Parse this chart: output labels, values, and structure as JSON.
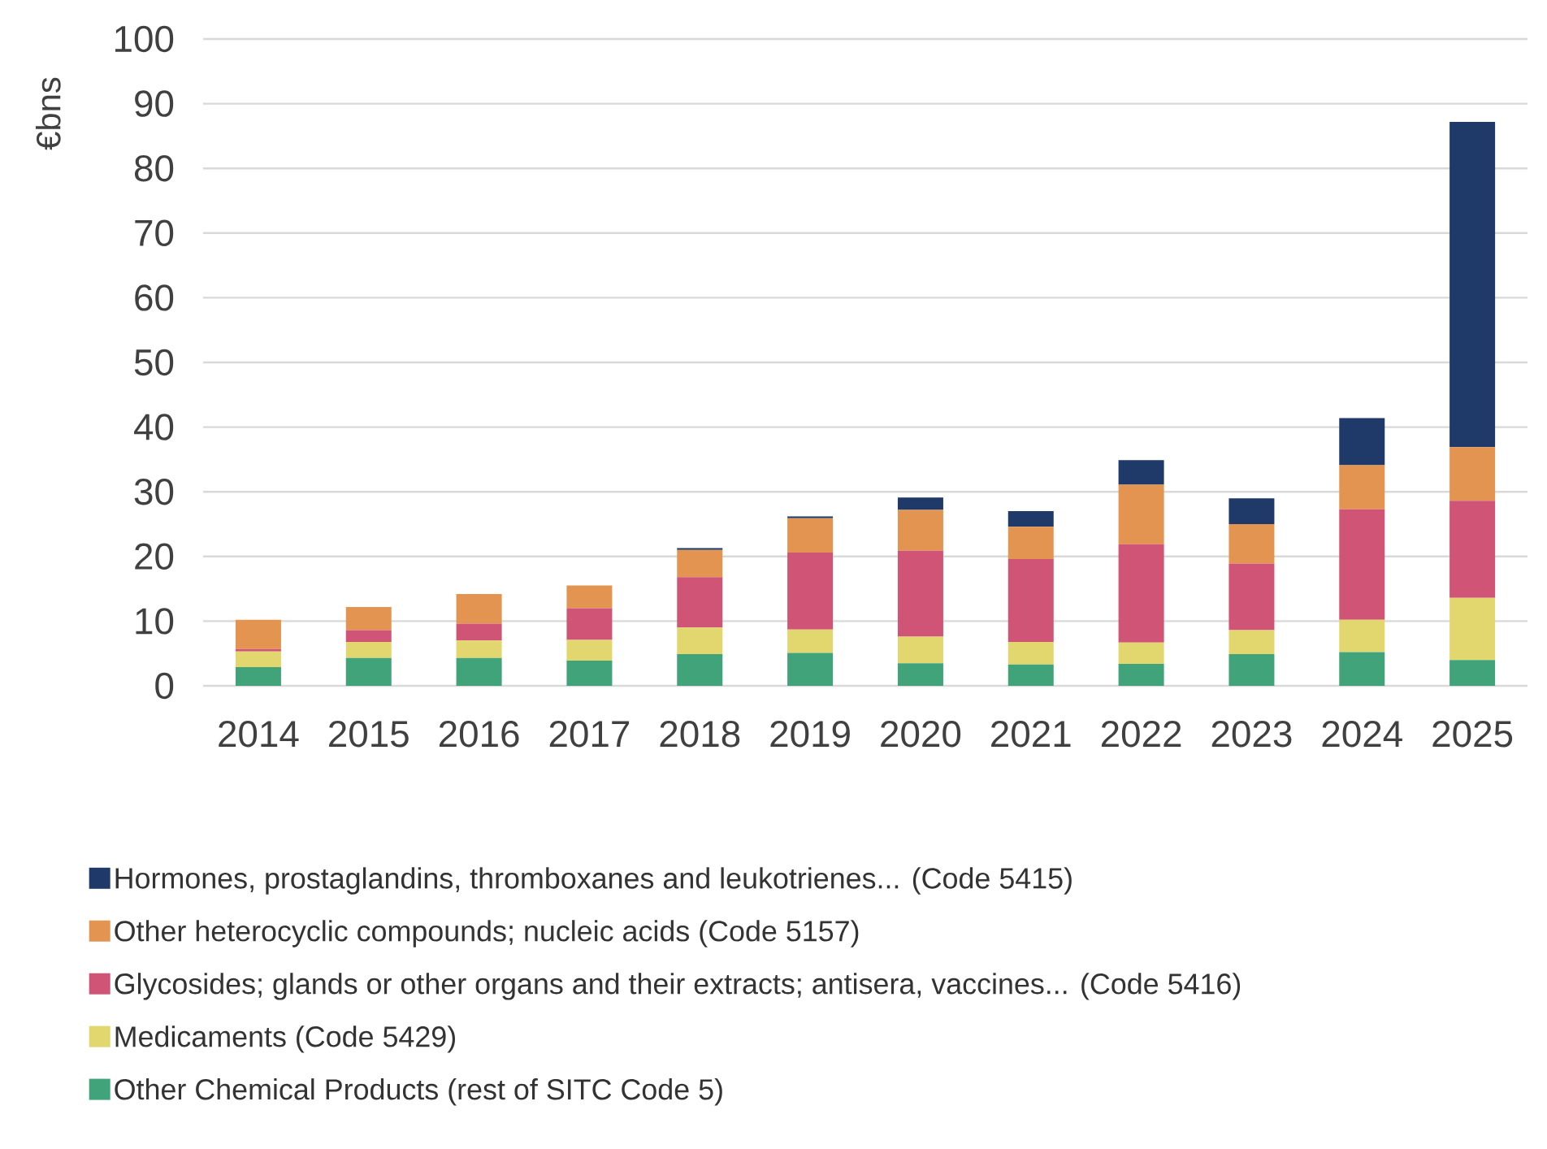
{
  "chart_data": {
    "type": "bar",
    "stacked": true,
    "ylabel": "€bns",
    "categories": [
      "2014",
      "2015",
      "2016",
      "2017",
      "2018",
      "2019",
      "2020",
      "2021",
      "2022",
      "2023",
      "2024",
      "2025"
    ],
    "ylim": [
      0,
      100
    ],
    "yticks": [
      0,
      10,
      20,
      30,
      40,
      50,
      60,
      70,
      80,
      90,
      100
    ],
    "grid": "y",
    "legend": "bottom",
    "series": [
      {
        "name": "Other Chemical Products (rest of SITC Code 5)",
        "color": "#41a37a",
        "values": [
          2.9,
          4.3,
          4.3,
          3.9,
          4.9,
          5.1,
          3.5,
          3.3,
          3.4,
          4.9,
          5.2,
          4.0
        ]
      },
      {
        "name": "Medicaments (Code 5429)",
        "color": "#e2d66e",
        "values": [
          2.4,
          2.5,
          2.7,
          3.2,
          4.1,
          3.6,
          4.1,
          3.5,
          3.3,
          3.7,
          5.0,
          9.6
        ]
      },
      {
        "name": "Glycosides; glands or other organs and their extracts; antisera, vaccines... (Code 5416)",
        "color": "#d05475",
        "values": [
          0.4,
          1.8,
          2.6,
          4.9,
          7.8,
          11.9,
          13.3,
          12.8,
          15.2,
          10.3,
          17.1,
          15.0
        ]
      },
      {
        "name": "Other heterocyclic compounds; nucleic acids (Code 5157)",
        "color": "#e39450",
        "values": [
          4.5,
          3.6,
          4.6,
          3.5,
          4.2,
          5.3,
          6.3,
          5.0,
          9.2,
          6.1,
          6.8,
          8.3
        ]
      },
      {
        "name": "Hormones, prostaglandins, thromboxanes and leukotrienes... (Code 5415)",
        "color": "#1f3a68",
        "values": [
          0,
          0,
          0,
          null,
          0.3,
          0.3,
          1.9,
          2.4,
          3.8,
          4.0,
          7.3,
          50.3
        ]
      }
    ]
  }
}
